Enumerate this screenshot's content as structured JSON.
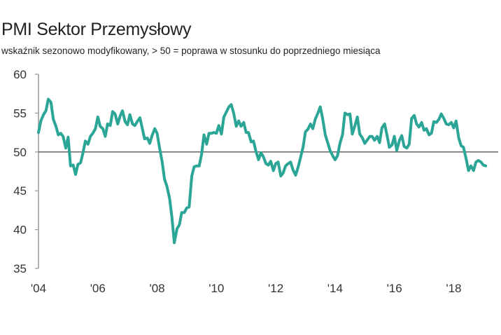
{
  "chart_data": {
    "type": "line",
    "title": "PMI Sektor Przemysłowy",
    "subtitle": "wskaźnik sezonowo modyfikowany, > 50 = poprawa w stosunku do poprzedniego miesiąca",
    "xlabel": "",
    "ylabel": "",
    "ylim": [
      35,
      60
    ],
    "xlim": [
      2004.0,
      2019.5
    ],
    "yticks": [
      35,
      40,
      45,
      50,
      55,
      60
    ],
    "xticks": [
      {
        "value": 2004,
        "label": "'04"
      },
      {
        "value": 2006,
        "label": "'06"
      },
      {
        "value": 2008,
        "label": "'08"
      },
      {
        "value": 2010,
        "label": "'10"
      },
      {
        "value": 2012,
        "label": "'12"
      },
      {
        "value": 2014,
        "label": "'14"
      },
      {
        "value": 2016,
        "label": "'16"
      },
      {
        "value": 2018,
        "label": "'18"
      }
    ],
    "reference_line": 50,
    "grid": false,
    "colors": {
      "line": "#2aa596",
      "reference": "#555555",
      "axis": "#999999"
    },
    "series": [
      {
        "name": "",
        "points": [
          [
            2004.0,
            52.5
          ],
          [
            2004.08,
            54.0
          ],
          [
            2004.17,
            54.8
          ],
          [
            2004.25,
            55.3
          ],
          [
            2004.33,
            56.8
          ],
          [
            2004.42,
            56.4
          ],
          [
            2004.5,
            54.2
          ],
          [
            2004.58,
            53.4
          ],
          [
            2004.67,
            52.2
          ],
          [
            2004.75,
            52.4
          ],
          [
            2004.83,
            52.0
          ],
          [
            2004.92,
            50.5
          ],
          [
            2005.0,
            51.9
          ],
          [
            2005.08,
            48.2
          ],
          [
            2005.17,
            48.3
          ],
          [
            2005.25,
            47.1
          ],
          [
            2005.33,
            48.4
          ],
          [
            2005.42,
            48.6
          ],
          [
            2005.5,
            49.9
          ],
          [
            2005.58,
            51.4
          ],
          [
            2005.67,
            51.0
          ],
          [
            2005.75,
            52.0
          ],
          [
            2005.83,
            52.4
          ],
          [
            2005.92,
            53.0
          ],
          [
            2006.0,
            54.5
          ],
          [
            2006.08,
            53.3
          ],
          [
            2006.17,
            53.0
          ],
          [
            2006.25,
            52.0
          ],
          [
            2006.33,
            53.6
          ],
          [
            2006.42,
            53.4
          ],
          [
            2006.5,
            55.2
          ],
          [
            2006.58,
            54.9
          ],
          [
            2006.67,
            53.6
          ],
          [
            2006.75,
            54.6
          ],
          [
            2006.83,
            55.3
          ],
          [
            2006.92,
            53.9
          ],
          [
            2007.0,
            53.5
          ],
          [
            2007.08,
            54.8
          ],
          [
            2007.17,
            53.6
          ],
          [
            2007.25,
            53.4
          ],
          [
            2007.33,
            53.9
          ],
          [
            2007.42,
            54.4
          ],
          [
            2007.5,
            53.0
          ],
          [
            2007.58,
            51.7
          ],
          [
            2007.67,
            51.8
          ],
          [
            2007.75,
            51.1
          ],
          [
            2007.83,
            52.1
          ],
          [
            2007.92,
            53.0
          ],
          [
            2008.0,
            52.4
          ],
          [
            2008.08,
            50.6
          ],
          [
            2008.17,
            48.7
          ],
          [
            2008.25,
            46.5
          ],
          [
            2008.33,
            45.6
          ],
          [
            2008.42,
            44.0
          ],
          [
            2008.5,
            41.6
          ],
          [
            2008.58,
            38.3
          ],
          [
            2008.67,
            40.1
          ],
          [
            2008.75,
            40.6
          ],
          [
            2008.83,
            42.2
          ],
          [
            2008.92,
            42.2
          ],
          [
            2009.0,
            42.8
          ],
          [
            2009.08,
            42.9
          ],
          [
            2009.17,
            46.9
          ],
          [
            2009.25,
            48.1
          ],
          [
            2009.33,
            48.2
          ],
          [
            2009.42,
            48.2
          ],
          [
            2009.5,
            49.7
          ],
          [
            2009.58,
            52.2
          ],
          [
            2009.67,
            51.0
          ],
          [
            2009.75,
            52.4
          ],
          [
            2009.83,
            52.4
          ],
          [
            2009.92,
            52.5
          ],
          [
            2010.0,
            52.4
          ],
          [
            2010.08,
            53.4
          ],
          [
            2010.17,
            52.3
          ],
          [
            2010.25,
            54.5
          ],
          [
            2010.33,
            55.1
          ],
          [
            2010.42,
            55.8
          ],
          [
            2010.5,
            56.1
          ],
          [
            2010.58,
            55.0
          ],
          [
            2010.67,
            53.3
          ],
          [
            2010.75,
            54.0
          ],
          [
            2010.83,
            53.3
          ],
          [
            2010.92,
            53.8
          ],
          [
            2011.0,
            52.5
          ],
          [
            2011.08,
            52.5
          ],
          [
            2011.17,
            51.3
          ],
          [
            2011.25,
            51.4
          ],
          [
            2011.33,
            50.1
          ],
          [
            2011.42,
            49.0
          ],
          [
            2011.5,
            49.9
          ],
          [
            2011.58,
            49.4
          ],
          [
            2011.67,
            48.5
          ],
          [
            2011.75,
            48.3
          ],
          [
            2011.83,
            48.8
          ],
          [
            2011.92,
            47.6
          ],
          [
            2012.0,
            48.5
          ],
          [
            2012.08,
            48.7
          ],
          [
            2012.17,
            46.9
          ],
          [
            2012.25,
            47.3
          ],
          [
            2012.33,
            48.2
          ],
          [
            2012.42,
            48.5
          ],
          [
            2012.5,
            48.7
          ],
          [
            2012.58,
            47.7
          ],
          [
            2012.67,
            47.0
          ],
          [
            2012.75,
            48.0
          ],
          [
            2012.83,
            49.2
          ],
          [
            2012.92,
            50.6
          ],
          [
            2013.0,
            52.6
          ],
          [
            2013.08,
            52.9
          ],
          [
            2013.17,
            53.6
          ],
          [
            2013.25,
            53.0
          ],
          [
            2013.33,
            54.2
          ],
          [
            2013.42,
            55.0
          ],
          [
            2013.5,
            55.8
          ],
          [
            2013.58,
            54.3
          ],
          [
            2013.67,
            52.2
          ],
          [
            2013.75,
            51.2
          ],
          [
            2013.83,
            50.2
          ],
          [
            2013.92,
            49.5
          ],
          [
            2014.0,
            49.0
          ],
          [
            2014.08,
            49.5
          ],
          [
            2014.17,
            51.2
          ],
          [
            2014.25,
            52.2
          ],
          [
            2014.33,
            55.0
          ],
          [
            2014.42,
            54.8
          ],
          [
            2014.5,
            54.9
          ],
          [
            2014.58,
            52.3
          ],
          [
            2014.67,
            53.4
          ],
          [
            2014.75,
            54.5
          ],
          [
            2014.83,
            52.3
          ],
          [
            2014.92,
            51.8
          ],
          [
            2015.0,
            51.1
          ],
          [
            2015.08,
            51.5
          ],
          [
            2015.17,
            52.0
          ],
          [
            2015.25,
            52.0
          ],
          [
            2015.33,
            51.5
          ],
          [
            2015.42,
            52.0
          ],
          [
            2015.5,
            51.2
          ],
          [
            2015.58,
            53.1
          ],
          [
            2015.67,
            53.6
          ],
          [
            2015.75,
            52.2
          ],
          [
            2015.83,
            50.6
          ],
          [
            2015.92,
            50.9
          ],
          [
            2016.0,
            52.0
          ],
          [
            2016.08,
            50.2
          ],
          [
            2016.17,
            51.5
          ],
          [
            2016.25,
            52.1
          ],
          [
            2016.33,
            50.7
          ],
          [
            2016.42,
            50.5
          ],
          [
            2016.5,
            51.0
          ],
          [
            2016.58,
            54.3
          ],
          [
            2016.67,
            54.7
          ],
          [
            2016.75,
            53.6
          ],
          [
            2016.83,
            53.2
          ],
          [
            2016.92,
            53.8
          ],
          [
            2017.0,
            52.8
          ],
          [
            2017.08,
            53.0
          ],
          [
            2017.17,
            52.2
          ],
          [
            2017.25,
            52.4
          ],
          [
            2017.33,
            53.9
          ],
          [
            2017.42,
            53.8
          ],
          [
            2017.5,
            54.2
          ],
          [
            2017.58,
            54.9
          ],
          [
            2017.67,
            54.3
          ],
          [
            2017.75,
            53.6
          ],
          [
            2017.83,
            53.5
          ],
          [
            2017.92,
            53.8
          ],
          [
            2018.0,
            53.1
          ],
          [
            2018.08,
            54.0
          ],
          [
            2018.17,
            51.8
          ],
          [
            2018.25,
            50.8
          ],
          [
            2018.33,
            50.6
          ],
          [
            2018.42,
            49.1
          ],
          [
            2018.5,
            47.6
          ],
          [
            2018.58,
            48.2
          ],
          [
            2018.67,
            47.6
          ],
          [
            2018.75,
            48.7
          ],
          [
            2018.83,
            48.9
          ],
          [
            2018.92,
            48.7
          ],
          [
            2019.0,
            48.3
          ],
          [
            2019.08,
            48.2
          ]
        ]
      }
    ]
  }
}
